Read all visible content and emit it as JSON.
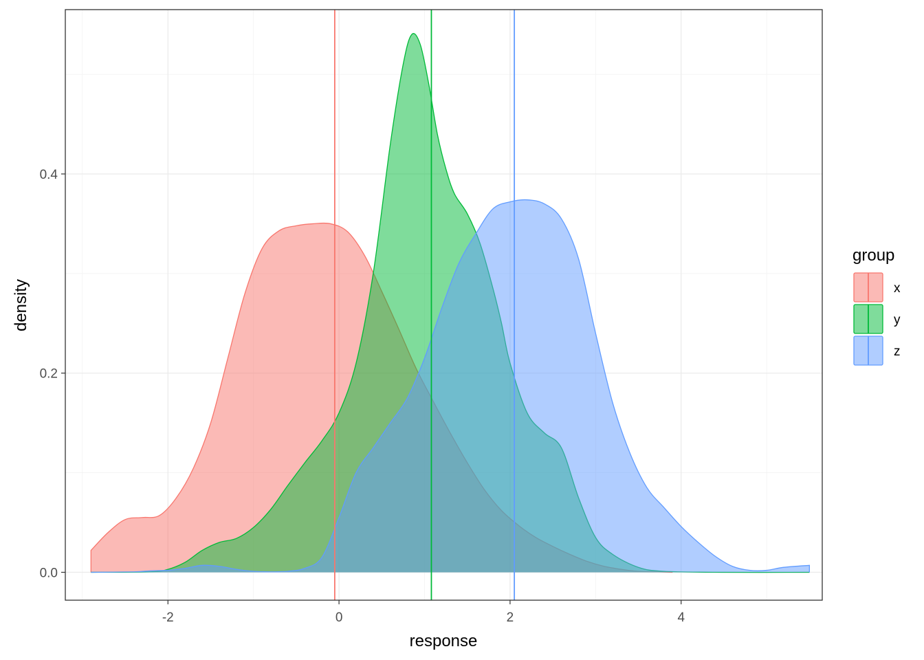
{
  "chart_data": {
    "type": "area",
    "subtype": "density",
    "title": "",
    "xlabel": "response",
    "ylabel": "density",
    "xlim": [
      -3.2,
      5.65
    ],
    "ylim": [
      -0.028,
      0.565
    ],
    "x_ticks": [
      -2,
      0,
      2,
      4
    ],
    "x_tick_labels": [
      "-2",
      "0",
      "2",
      "4"
    ],
    "y_ticks": [
      0.0,
      0.2,
      0.4
    ],
    "y_tick_labels": [
      "0.0",
      "0.2",
      "0.4"
    ],
    "grid": true,
    "legend": {
      "title": "group",
      "position": "right",
      "entries": [
        "x",
        "y",
        "z"
      ]
    },
    "series": [
      {
        "name": "x",
        "color": "#F8766D",
        "mean": -0.05,
        "x": [
          -2.9,
          -2.7,
          -2.5,
          -2.3,
          -2.1,
          -1.9,
          -1.7,
          -1.5,
          -1.3,
          -1.1,
          -0.9,
          -0.7,
          -0.5,
          -0.3,
          -0.1,
          0.1,
          0.3,
          0.5,
          0.7,
          0.9,
          1.1,
          1.3,
          1.5,
          1.7,
          1.9,
          2.1,
          2.3,
          2.5,
          2.7,
          2.9,
          3.1,
          3.3,
          3.5,
          3.7,
          3.9
        ],
        "y": [
          0.022,
          0.04,
          0.053,
          0.055,
          0.057,
          0.075,
          0.105,
          0.15,
          0.215,
          0.28,
          0.325,
          0.343,
          0.348,
          0.35,
          0.35,
          0.342,
          0.318,
          0.282,
          0.244,
          0.205,
          0.172,
          0.14,
          0.11,
          0.083,
          0.062,
          0.047,
          0.035,
          0.026,
          0.018,
          0.011,
          0.006,
          0.003,
          0.001,
          0.0005,
          0.0
        ]
      },
      {
        "name": "y",
        "color": "#00BA38",
        "mean": 1.08,
        "x": [
          -2.9,
          -2.2,
          -2.0,
          -1.8,
          -1.6,
          -1.4,
          -1.2,
          -1.0,
          -0.8,
          -0.6,
          -0.4,
          -0.2,
          0.0,
          0.2,
          0.4,
          0.6,
          0.75,
          0.85,
          0.95,
          1.05,
          1.15,
          1.25,
          1.35,
          1.5,
          1.65,
          1.8,
          1.9,
          2.0,
          2.2,
          2.4,
          2.6,
          2.8,
          3.0,
          3.2,
          3.5,
          3.8,
          4.5,
          5.5
        ],
        "y": [
          0.0,
          0.0005,
          0.003,
          0.01,
          0.022,
          0.03,
          0.034,
          0.045,
          0.063,
          0.087,
          0.11,
          0.132,
          0.16,
          0.21,
          0.3,
          0.43,
          0.51,
          0.54,
          0.53,
          0.49,
          0.44,
          0.405,
          0.38,
          0.36,
          0.33,
          0.285,
          0.25,
          0.21,
          0.16,
          0.14,
          0.125,
          0.075,
          0.035,
          0.018,
          0.005,
          0.001,
          0.0,
          0.0
        ]
      },
      {
        "name": "z",
        "color": "#619CFF",
        "mean": 2.05,
        "x": [
          -2.9,
          -2.4,
          -2.2,
          -2.0,
          -1.8,
          -1.6,
          -1.4,
          -1.2,
          -1.0,
          -0.8,
          -0.6,
          -0.4,
          -0.2,
          0.0,
          0.2,
          0.4,
          0.6,
          0.8,
          1.0,
          1.2,
          1.4,
          1.6,
          1.8,
          2.0,
          2.2,
          2.4,
          2.6,
          2.8,
          3.0,
          3.2,
          3.4,
          3.6,
          3.8,
          4.0,
          4.2,
          4.4,
          4.6,
          4.8,
          5.0,
          5.2,
          5.5
        ],
        "y": [
          0.0,
          0.0005,
          0.0015,
          0.002,
          0.004,
          0.007,
          0.006,
          0.003,
          0.001,
          0.0005,
          0.001,
          0.004,
          0.015,
          0.055,
          0.1,
          0.125,
          0.15,
          0.175,
          0.215,
          0.265,
          0.31,
          0.34,
          0.365,
          0.372,
          0.374,
          0.37,
          0.355,
          0.315,
          0.24,
          0.17,
          0.12,
          0.085,
          0.065,
          0.046,
          0.03,
          0.016,
          0.006,
          0.002,
          0.002,
          0.005,
          0.007
        ]
      }
    ]
  }
}
